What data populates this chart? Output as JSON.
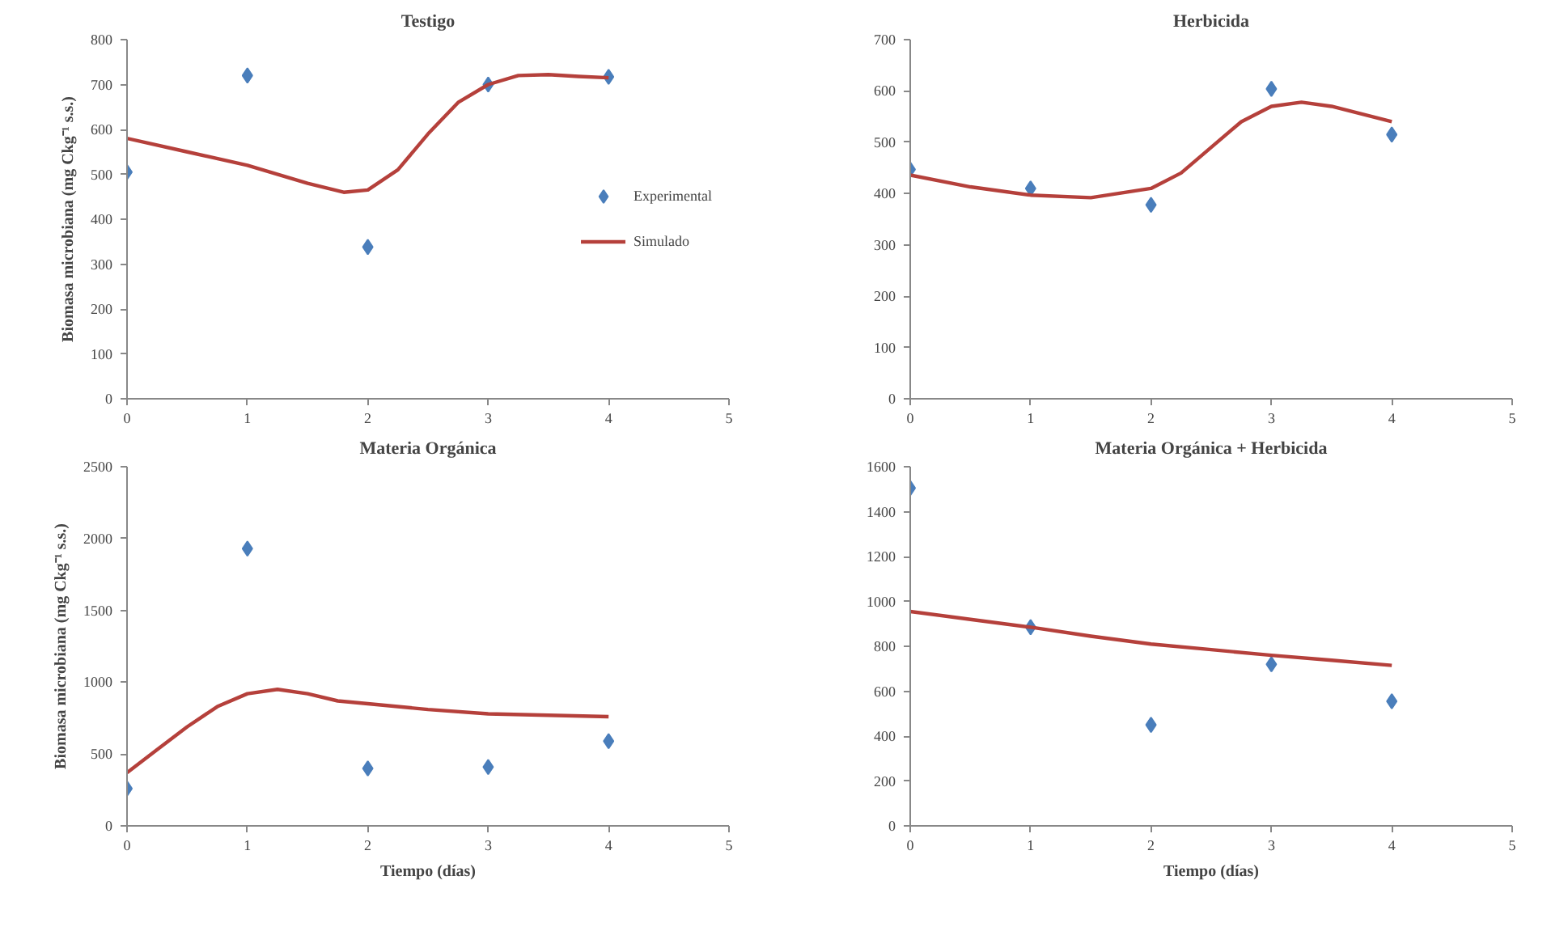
{
  "chart_data": [
    {
      "type": "scatter",
      "title": "Testigo",
      "ylabel": "Biomasa microbiana (mg Ckg⁻¹ s.s.)",
      "xlim": [
        0,
        5
      ],
      "xticks": [
        0,
        1,
        2,
        3,
        4,
        5
      ],
      "ylim": [
        0,
        800
      ],
      "yticks": [
        0,
        100,
        200,
        300,
        400,
        500,
        600,
        700,
        800
      ],
      "grid": false,
      "legend": "right",
      "series": [
        {
          "name": "Experimental",
          "marker": "diamond",
          "color": "#4a7ebb",
          "x": [
            0,
            1,
            2,
            3,
            4
          ],
          "values": [
            505,
            720,
            338,
            700,
            717
          ]
        },
        {
          "name": "Simulado",
          "type": "line",
          "color": "#b5403b",
          "x": [
            0,
            0.5,
            1,
            1.5,
            1.8,
            2,
            2.25,
            2.5,
            2.75,
            3,
            3.25,
            3.5,
            3.75,
            4
          ],
          "values": [
            580,
            550,
            520,
            480,
            460,
            465,
            510,
            590,
            660,
            700,
            720,
            722,
            718,
            715
          ]
        }
      ]
    },
    {
      "type": "scatter",
      "title": "Herbicida",
      "xlim": [
        0,
        5
      ],
      "xticks": [
        0,
        1,
        2,
        3,
        4,
        5
      ],
      "ylim": [
        0,
        700
      ],
      "yticks": [
        0,
        100,
        200,
        300,
        400,
        500,
        600,
        700
      ],
      "grid": false,
      "series": [
        {
          "marker": "diamond",
          "color": "#4a7ebb",
          "x": [
            0,
            1,
            2,
            3,
            4
          ],
          "values": [
            447,
            410,
            378,
            604,
            515
          ]
        },
        {
          "type": "line",
          "color": "#b5403b",
          "x": [
            0,
            0.5,
            1,
            1.5,
            2,
            2.25,
            2.5,
            2.75,
            3,
            3.25,
            3.5,
            3.75,
            4
          ],
          "values": [
            436,
            413,
            397,
            392,
            410,
            440,
            490,
            540,
            570,
            578,
            570,
            555,
            540
          ]
        }
      ]
    },
    {
      "type": "scatter",
      "title": "Materia Orgánica",
      "xlabel": "Tiempo (días)",
      "ylabel": "Biomasa microbiana (mg Ckg⁻¹ s.s.)",
      "xlim": [
        0,
        5
      ],
      "xticks": [
        0,
        1,
        2,
        3,
        4,
        5
      ],
      "ylim": [
        0,
        2500
      ],
      "yticks": [
        0,
        500,
        1000,
        1500,
        2000,
        2500
      ],
      "grid": false,
      "series": [
        {
          "marker": "diamond",
          "color": "#4a7ebb",
          "x": [
            0,
            1,
            2,
            3,
            4
          ],
          "values": [
            260,
            1930,
            400,
            410,
            590
          ]
        },
        {
          "type": "line",
          "color": "#b5403b",
          "x": [
            0,
            0.25,
            0.5,
            0.75,
            1,
            1.25,
            1.5,
            1.75,
            2,
            2.5,
            3,
            3.5,
            4
          ],
          "values": [
            370,
            530,
            690,
            830,
            920,
            950,
            920,
            870,
            850,
            810,
            780,
            770,
            760
          ]
        }
      ]
    },
    {
      "type": "scatter",
      "title": "Materia Orgánica + Herbicida",
      "xlabel": "Tiempo (días)",
      "xlim": [
        0,
        5
      ],
      "xticks": [
        0,
        1,
        2,
        3,
        4,
        5
      ],
      "ylim": [
        0,
        1600
      ],
      "yticks": [
        0,
        200,
        400,
        600,
        800,
        1000,
        1200,
        1400,
        1600
      ],
      "grid": false,
      "series": [
        {
          "marker": "diamond",
          "color": "#4a7ebb",
          "x": [
            0,
            1,
            2,
            3,
            4
          ],
          "values": [
            1505,
            885,
            450,
            720,
            555
          ]
        },
        {
          "type": "line",
          "color": "#b5403b",
          "x": [
            0,
            0.5,
            1,
            1.5,
            2,
            2.5,
            3,
            3.5,
            4
          ],
          "values": [
            955,
            920,
            885,
            845,
            810,
            785,
            760,
            738,
            715
          ]
        }
      ]
    }
  ]
}
